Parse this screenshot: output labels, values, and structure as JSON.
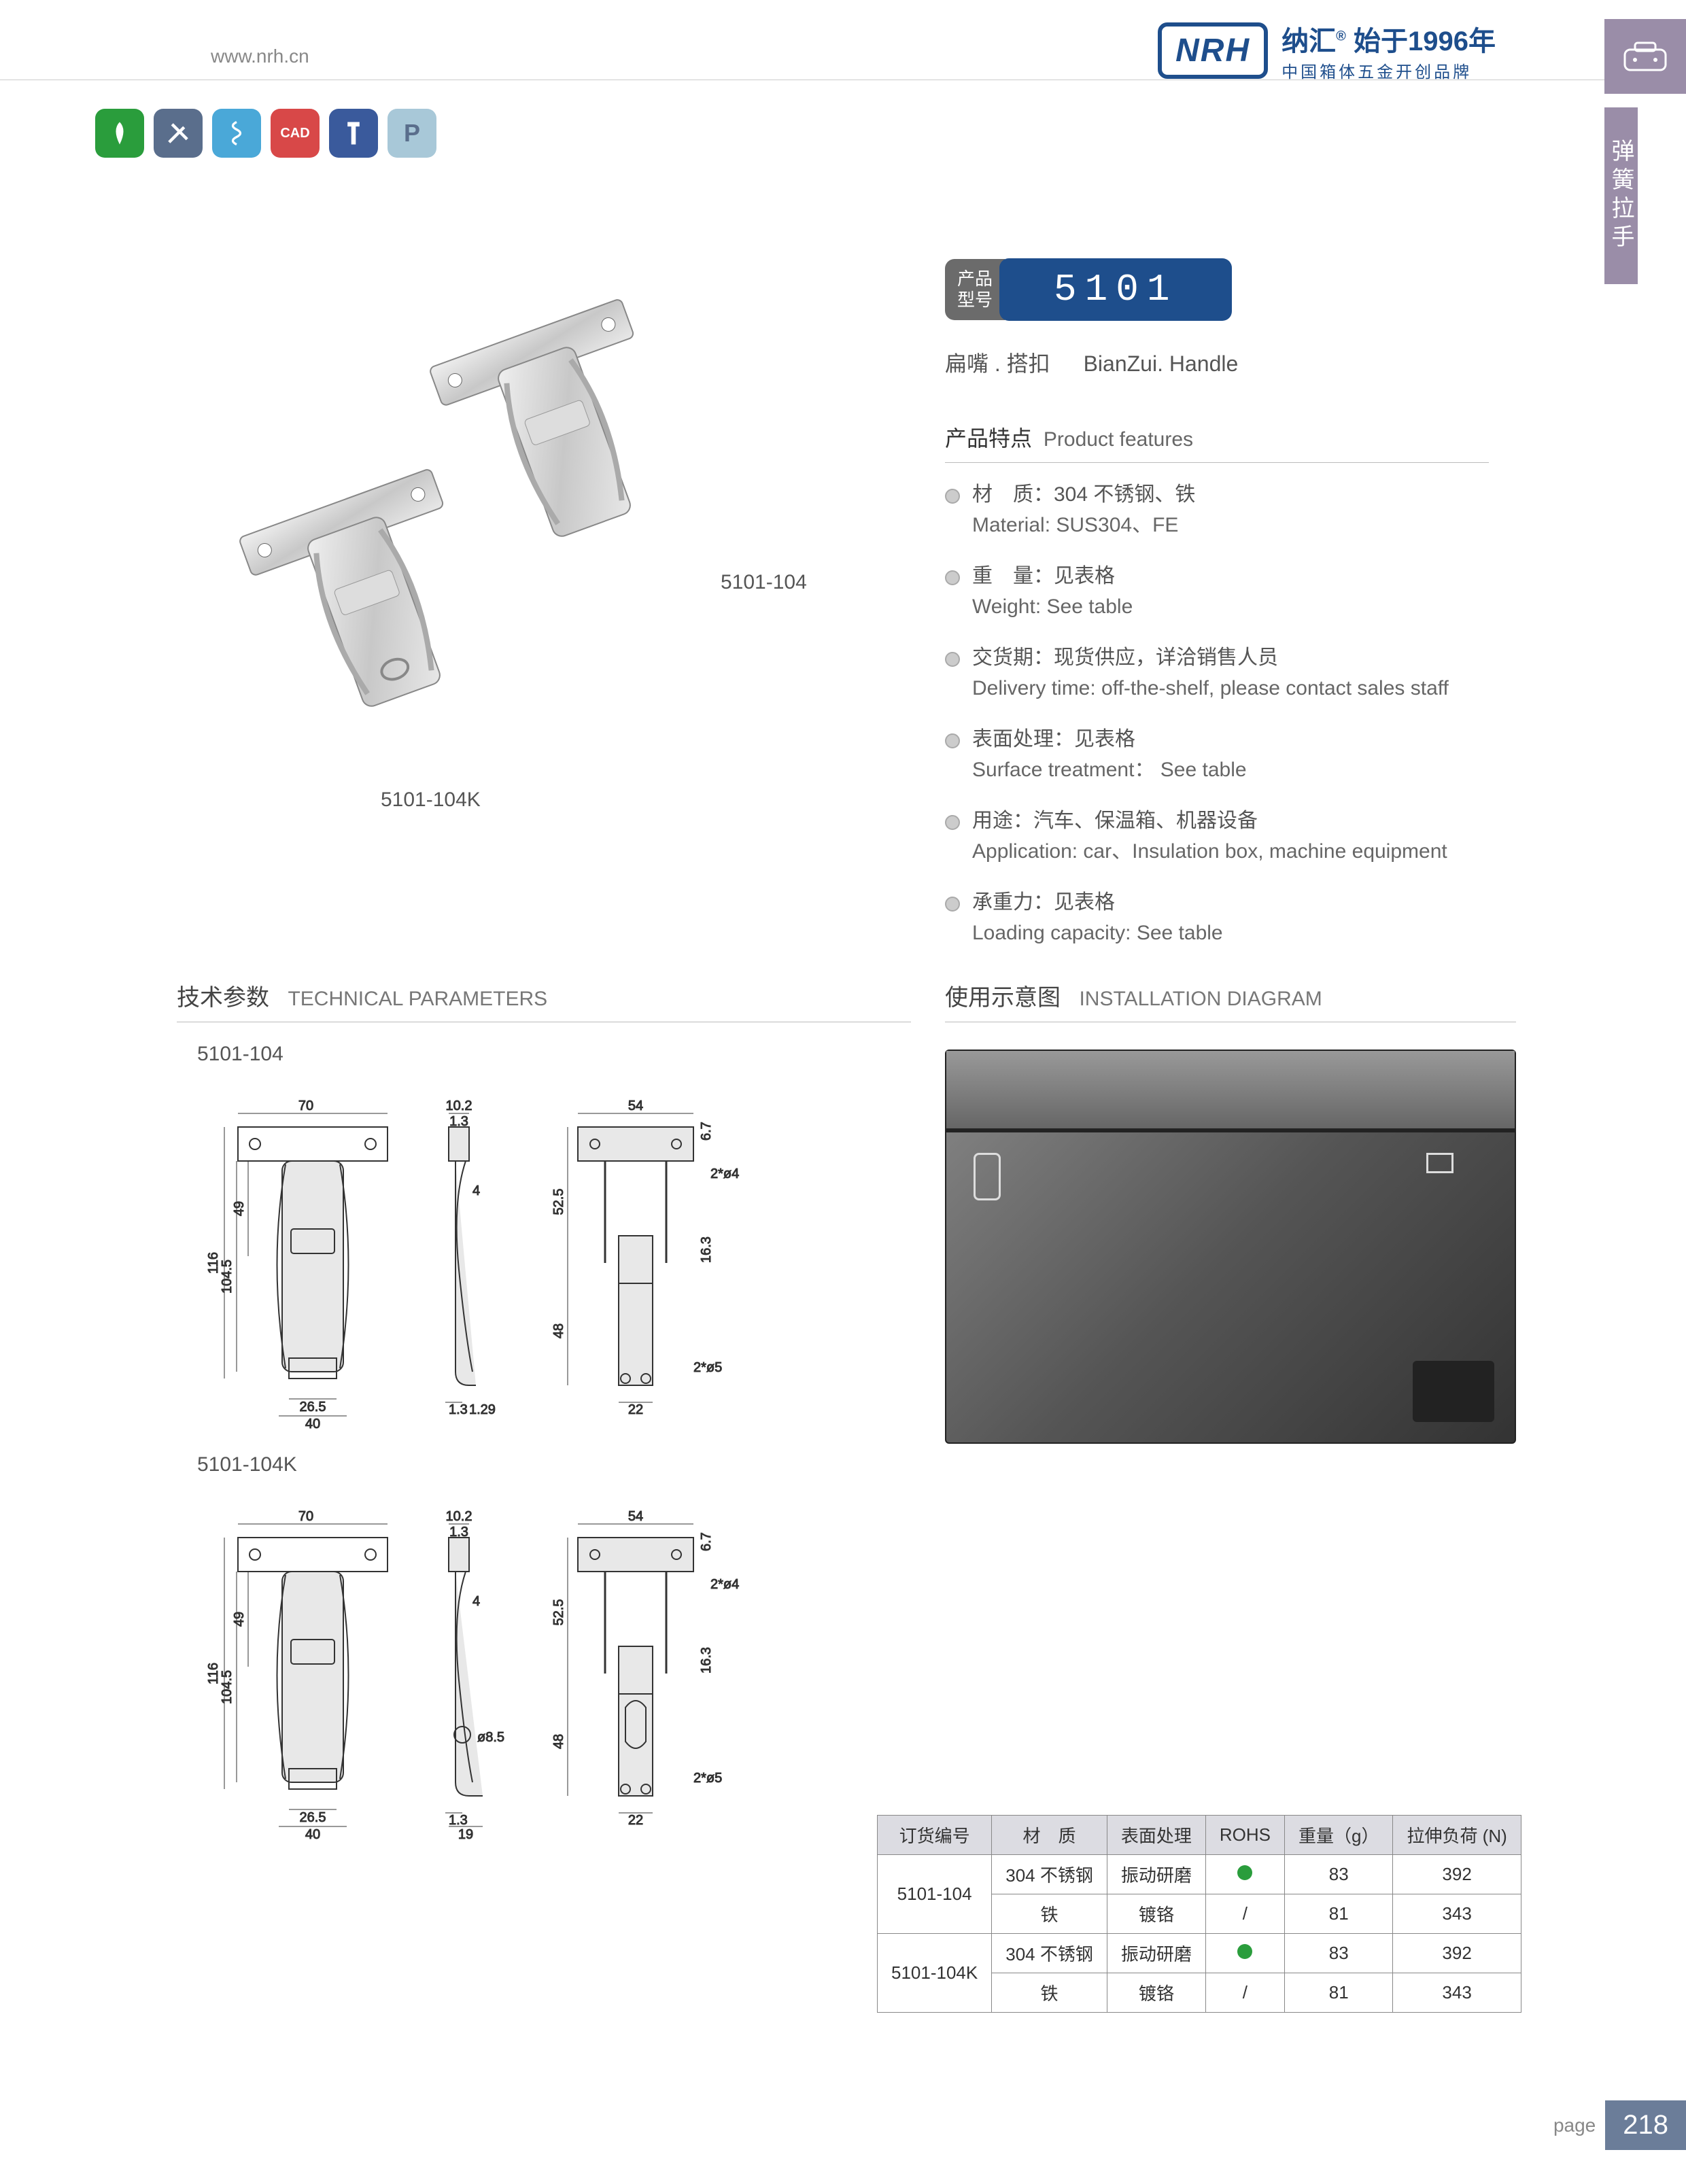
{
  "header": {
    "url": "www.nrh.cn",
    "logo": "NRH",
    "brand_cn": "纳汇",
    "brand_since": "始于1996年",
    "brand_sub": "中国箱体五金开创品牌"
  },
  "side_tab": {
    "label": "弹簧拉手"
  },
  "icons": [
    {
      "color": "#2a9d3c",
      "name": "eco-icon"
    },
    {
      "color": "#5a6e8c",
      "name": "tools-icon"
    },
    {
      "color": "#4aa8d8",
      "name": "spring-icon"
    },
    {
      "color": "#d84848",
      "name": "cad-icon",
      "text": "CAD"
    },
    {
      "color": "#3a5a9c",
      "name": "screw-icon"
    },
    {
      "color": "#a8c8d8",
      "name": "p-icon",
      "text": "P"
    }
  ],
  "model": {
    "tag_line1": "产品",
    "tag_line2": "型号",
    "number": "5101"
  },
  "product_name": {
    "cn": "扁嘴 . 搭扣",
    "en": "BianZui. Handle"
  },
  "product_images": {
    "label_a": "5101-104",
    "label_b": "5101-104K"
  },
  "features": {
    "title_cn": "产品特点",
    "title_en": "Product features",
    "items": [
      {
        "cn": "材　质：304 不锈钢、铁",
        "en": "Material: SUS304、FE"
      },
      {
        "cn": "重　量：见表格",
        "en": "Weight: See table"
      },
      {
        "cn": "交货期：现货供应，详洽销售人员",
        "en": "Delivery time: off-the-shelf, please contact sales staff"
      },
      {
        "cn": "表面处理：见表格",
        "en": "Surface treatment： See table"
      },
      {
        "cn": "用途：汽车、保温箱、机器设备",
        "en": "Application: car、Insulation box, machine equipment"
      },
      {
        "cn": "承重力：见表格",
        "en": "Loading capacity: See table"
      }
    ]
  },
  "sections": {
    "tech_cn": "技术参数",
    "tech_en": "TECHNICAL PARAMETERS",
    "install_cn": "使用示意图",
    "install_en": "INSTALLATION DIAGRAM"
  },
  "drawings": [
    {
      "label": "5101-104"
    },
    {
      "label": "5101-104K"
    }
  ],
  "drawing_dims": {
    "top_width": "70",
    "body_h1": "49",
    "body_h2": "104.5",
    "total_h": "116",
    "bottom_w1": "26.5",
    "bottom_w2": "40",
    "side_top": "10.2",
    "side_t1": "1.3",
    "side_t2": "1.29",
    "side_gap": "4",
    "right_w": "54",
    "right_t": "6.7",
    "right_note1": "2*ø4",
    "right_h1": "52.5",
    "right_h2": "16.3",
    "right_h3": "48",
    "right_bottom": "22",
    "right_note2": "2*ø5",
    "k_hole": "ø8.5",
    "k_side_b": "19"
  },
  "spec_table": {
    "headers": [
      "订货编号",
      "材　质",
      "表面处理",
      "ROHS",
      "重量（g）",
      "拉伸负荷 (N)"
    ],
    "rows": [
      {
        "code": "5101-104",
        "material": "304 不锈钢",
        "surface": "振动研磨",
        "rohs": "dot",
        "weight": "83",
        "load": "392"
      },
      {
        "code": "",
        "material": "铁",
        "surface": "镀铬",
        "rohs": "/",
        "weight": "81",
        "load": "343"
      },
      {
        "code": "5101-104K",
        "material": "304 不锈钢",
        "surface": "振动研磨",
        "rohs": "dot",
        "weight": "83",
        "load": "392"
      },
      {
        "code": "",
        "material": "铁",
        "surface": "镀铬",
        "rohs": "/",
        "weight": "81",
        "load": "343"
      }
    ]
  },
  "footer": {
    "label": "page",
    "num": "218"
  }
}
